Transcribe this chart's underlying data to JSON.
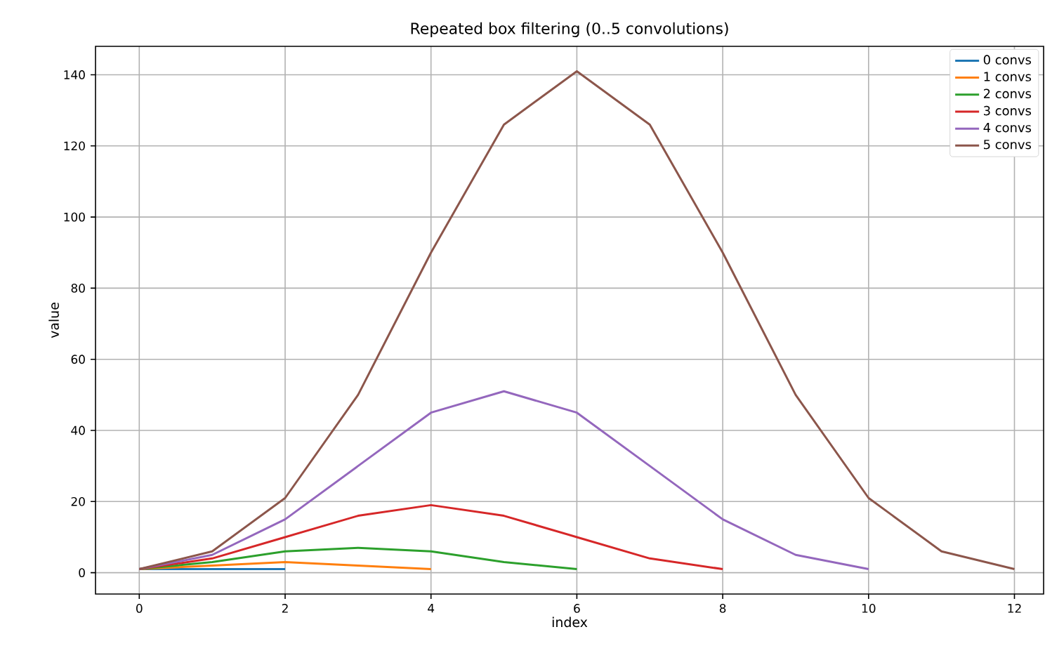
{
  "chart_data": {
    "type": "line",
    "title": "Repeated box filtering (0..5 convolutions)",
    "xlabel": "index",
    "ylabel": "value",
    "xlim": [
      -0.6,
      12.4
    ],
    "ylim": [
      -6,
      148
    ],
    "xticks": [
      0,
      2,
      4,
      6,
      8,
      10,
      12
    ],
    "yticks": [
      0,
      20,
      40,
      60,
      80,
      100,
      120,
      140
    ],
    "grid": true,
    "legend": "top right",
    "series": [
      {
        "name": "0 convs",
        "color": "#1f77b4",
        "x": [
          0,
          1,
          2
        ],
        "values": [
          1,
          1,
          1
        ]
      },
      {
        "name": "1 convs",
        "color": "#ff7f0e",
        "x": [
          0,
          1,
          2,
          3,
          4
        ],
        "values": [
          1,
          2,
          3,
          2,
          1
        ]
      },
      {
        "name": "2 convs",
        "color": "#2ca02c",
        "x": [
          0,
          1,
          2,
          3,
          4,
          5,
          6
        ],
        "values": [
          1,
          3,
          6,
          7,
          6,
          3,
          1
        ]
      },
      {
        "name": "3 convs",
        "color": "#d62728",
        "x": [
          0,
          1,
          2,
          3,
          4,
          5,
          6,
          7,
          8
        ],
        "values": [
          1,
          4,
          10,
          16,
          19,
          16,
          10,
          4,
          1
        ]
      },
      {
        "name": "4 convs",
        "color": "#9467bd",
        "x": [
          0,
          1,
          2,
          3,
          4,
          5,
          6,
          7,
          8,
          9,
          10
        ],
        "values": [
          1,
          5,
          15,
          30,
          45,
          51,
          45,
          30,
          15,
          5,
          1
        ]
      },
      {
        "name": "5 convs",
        "color": "#8c564b",
        "x": [
          0,
          1,
          2,
          3,
          4,
          5,
          6,
          7,
          8,
          9,
          10,
          11,
          12
        ],
        "values": [
          1,
          6,
          21,
          50,
          90,
          126,
          141,
          126,
          90,
          50,
          21,
          6,
          1
        ]
      }
    ]
  }
}
